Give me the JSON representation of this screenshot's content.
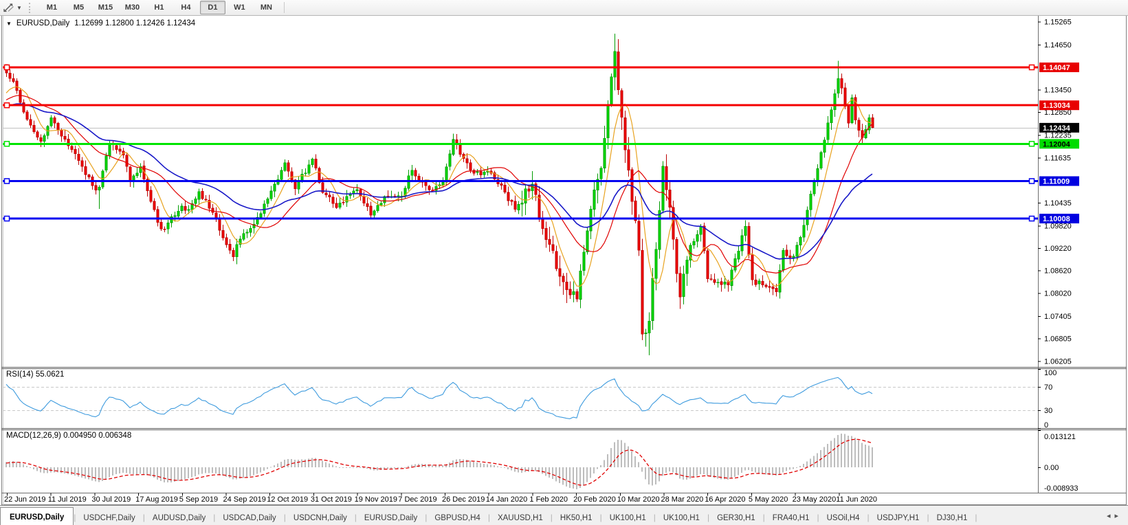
{
  "toolbar": {
    "timeframes": [
      "M1",
      "M5",
      "M15",
      "M30",
      "H1",
      "H4",
      "D1",
      "W1",
      "MN"
    ],
    "active_timeframe": "D1"
  },
  "chart_header": {
    "dropdown_glyph": "▼",
    "title": "EURUSD,Daily",
    "ohlc_text": "1.12699 1.12800 1.12426 1.12434"
  },
  "chart_data": {
    "type": "candlestick",
    "symbol": "EURUSD",
    "timeframe": "Daily",
    "candle_count": 253,
    "price_range": [
      1.06045,
      1.15405
    ],
    "last_candle": {
      "open": 1.12699,
      "high": 1.128,
      "low": 1.12426,
      "close": 1.12434
    },
    "first_open": 1.1412,
    "close_waypoints": [
      [
        0,
        1.139
      ],
      [
        2,
        1.1367
      ],
      [
        5,
        1.1285
      ],
      [
        10,
        1.1207
      ],
      [
        13,
        1.127
      ],
      [
        17,
        1.1213
      ],
      [
        22,
        1.114
      ],
      [
        26,
        1.1077
      ],
      [
        27,
        1.1085
      ],
      [
        30,
        1.12
      ],
      [
        34,
        1.117
      ],
      [
        36,
        1.11
      ],
      [
        39,
        1.114
      ],
      [
        44,
        1.099
      ],
      [
        46,
        1.0972
      ],
      [
        51,
        1.1034
      ],
      [
        53,
        1.1025
      ],
      [
        56,
        1.1073
      ],
      [
        60,
        1.1017
      ],
      [
        66,
        1.0899
      ],
      [
        67,
        1.0932
      ],
      [
        70,
        1.0965
      ],
      [
        73,
        1.1004
      ],
      [
        75,
        1.104
      ],
      [
        81,
        1.115
      ],
      [
        84,
        1.108
      ],
      [
        89,
        1.116
      ],
      [
        92,
        1.107
      ],
      [
        96,
        1.103
      ],
      [
        102,
        1.1078
      ],
      [
        106,
        1.101
      ],
      [
        110,
        1.106
      ],
      [
        115,
        1.1061
      ],
      [
        118,
        1.113
      ],
      [
        123,
        1.1078
      ],
      [
        127,
        1.1098
      ],
      [
        130,
        1.1212
      ],
      [
        132,
        1.1172
      ],
      [
        136,
        1.1122
      ],
      [
        140,
        1.1128
      ],
      [
        144,
        1.109
      ],
      [
        148,
        1.1025
      ],
      [
        153,
        1.1093
      ],
      [
        157,
        1.0945
      ],
      [
        162,
        1.0832
      ],
      [
        166,
        1.0786
      ],
      [
        170,
        1.1026
      ],
      [
        173,
        1.1135
      ],
      [
        177,
        1.1447
      ],
      [
        179,
        1.1271
      ],
      [
        180,
        1.1184
      ],
      [
        183,
        1.0995
      ],
      [
        184,
        1.0916
      ],
      [
        185,
        1.0692
      ],
      [
        186,
        1.0696
      ],
      [
        187,
        1.0727
      ],
      [
        191,
        1.1141
      ],
      [
        193,
        1.1031
      ],
      [
        196,
        1.0791
      ],
      [
        199,
        1.093
      ],
      [
        202,
        1.098
      ],
      [
        204,
        1.084
      ],
      [
        210,
        1.0823
      ],
      [
        214,
        1.0955
      ],
      [
        215,
        1.098
      ],
      [
        217,
        1.0837
      ],
      [
        219,
        1.0834
      ],
      [
        224,
        1.0805
      ],
      [
        226,
        1.0916
      ],
      [
        229,
        1.09
      ],
      [
        232,
        1.0983
      ],
      [
        235,
        1.1101
      ],
      [
        236,
        1.1134
      ],
      [
        240,
        1.1291
      ],
      [
        242,
        1.1375
      ],
      [
        244,
        1.1301
      ],
      [
        245,
        1.1256
      ],
      [
        246,
        1.1323
      ],
      [
        247,
        1.1264
      ],
      [
        249,
        1.1217
      ],
      [
        251,
        1.127
      ],
      [
        252,
        1.12434
      ]
    ],
    "extremes": {
      "0": {
        "h": 1.1412
      },
      "27": {
        "l": 1.1027
      },
      "67": {
        "l": 1.0879
      },
      "166": {
        "l": 1.0778
      },
      "177": {
        "h": 1.1495
      },
      "187": {
        "l": 1.0636
      },
      "242": {
        "h": 1.1422
      },
      "252": {
        "o": 1.12699,
        "h": 1.128,
        "l": 1.12426,
        "c": 1.12434
      }
    },
    "noise_zones": [
      {
        "from": 0,
        "to": 150,
        "amp": 0.0011
      },
      {
        "from": 150,
        "to": 200,
        "amp": 0.0024
      },
      {
        "from": 200,
        "to": 253,
        "amp": 0.0013
      }
    ],
    "warmup": {
      "n": 60,
      "from": 1.121,
      "to": 1.133,
      "amp": 0.0012
    },
    "colors": {
      "up_fill": "#00E000",
      "up_stroke": "#009C00",
      "down_fill": "#F40000",
      "down_stroke": "#BC0000",
      "current_price_line": "#C0C0C0"
    },
    "moving_averages": [
      {
        "name": "ma-fast",
        "type": "sma",
        "period": 7,
        "color": "#E8A21E",
        "width": 1.2
      },
      {
        "name": "ma-medium",
        "type": "sma",
        "period": 18,
        "color": "#E00000",
        "width": 1.2
      },
      {
        "name": "ma-slow",
        "type": "ema",
        "period": 40,
        "color": "#1818C8",
        "width": 1.6
      }
    ],
    "hlines": [
      {
        "price": 1.14047,
        "label": "1.14047",
        "color": "#F40000",
        "width": 3,
        "badge_bg": "#E80000",
        "badge_fg": "#FFFFFF",
        "handles": "both"
      },
      {
        "price": 1.13034,
        "label": "1.13034",
        "color": "#F40000",
        "width": 3,
        "badge_bg": "#E80000",
        "badge_fg": "#FFFFFF",
        "handles": "left"
      },
      {
        "price": 1.12004,
        "label": "1.12004",
        "color": "#00E400",
        "width": 3,
        "badge_bg": "#00DC00",
        "badge_fg": "#000000",
        "handles": "both"
      },
      {
        "price": 1.11009,
        "label": "1.11009",
        "color": "#0000F0",
        "width": 3,
        "badge_bg": "#0000E0",
        "badge_fg": "#FFFFFF",
        "handles": "both"
      },
      {
        "price": 1.10008,
        "label": "1.10008",
        "color": "#0000F0",
        "width": 3,
        "badge_bg": "#0000E0",
        "badge_fg": "#FFFFFF",
        "handles": "both"
      }
    ],
    "current_price": {
      "value": 1.12434,
      "label": "1.12434",
      "badge_bg": "#000000",
      "badge_fg": "#FFFFFF"
    },
    "price_axis_ticks": [
      "1.15265",
      "1.14650",
      "1.13450",
      "1.12850",
      "1.12235",
      "1.11635",
      "1.10435",
      "1.09820",
      "1.09220",
      "1.08620",
      "1.08020",
      "1.07405",
      "1.06805",
      "1.06205"
    ],
    "x_labels": [
      "22 Jun 2019",
      "11 Jul 2019",
      "30 Jul 2019",
      "17 Aug 2019",
      "5 Sep 2019",
      "24 Sep 2019",
      "12 Oct 2019",
      "31 Oct 2019",
      "19 Nov 2019",
      "7 Dec 2019",
      "26 Dec 2019",
      "14 Jan 2020",
      "1 Feb 2020",
      "20 Feb 2020",
      "10 Mar 2020",
      "28 Mar 2020",
      "16 Apr 2020",
      "5 May 2020",
      "23 May 2020",
      "11 Jun 2020"
    ],
    "indicators": {
      "rsi": {
        "label": "RSI(14) 55.0621",
        "period": 14,
        "current_value": 55.0621,
        "levels": [
          70,
          30
        ],
        "axis_labels": [
          "100",
          "70",
          "30",
          "0"
        ],
        "range": [
          0,
          100
        ],
        "line_color": "#3E9BDE",
        "level_color": "#C8C8C8"
      },
      "macd": {
        "label": "MACD(12,26,9) 0.004950 0.006348",
        "fast": 12,
        "slow": 26,
        "signal": 9,
        "current_main": 0.00495,
        "current_signal": 0.006348,
        "axis_labels": [
          "0.013121",
          "0.00",
          "-0.008933"
        ],
        "range": [
          -0.008933,
          0.013121
        ],
        "hist_color": "#BDBDBD",
        "signal_color": "#E00000"
      }
    },
    "legend_position": "none",
    "grid": "off"
  },
  "tabbar": {
    "tabs": [
      "EURUSD,Daily",
      "USDCHF,Daily",
      "AUDUSD,Daily",
      "USDCAD,Daily",
      "USDCNH,Daily",
      "EURUSD,Daily",
      "GBPUSD,H4",
      "XAUUSD,H1",
      "HK50,H1",
      "UK100,H1",
      "UK100,H1",
      "GER30,H1",
      "FRA40,H1",
      "USOil,H4",
      "USDJPY,H1",
      "DJ30,H1"
    ],
    "active_index": 0,
    "prev_icon": "◂",
    "next_icon": "▸"
  }
}
